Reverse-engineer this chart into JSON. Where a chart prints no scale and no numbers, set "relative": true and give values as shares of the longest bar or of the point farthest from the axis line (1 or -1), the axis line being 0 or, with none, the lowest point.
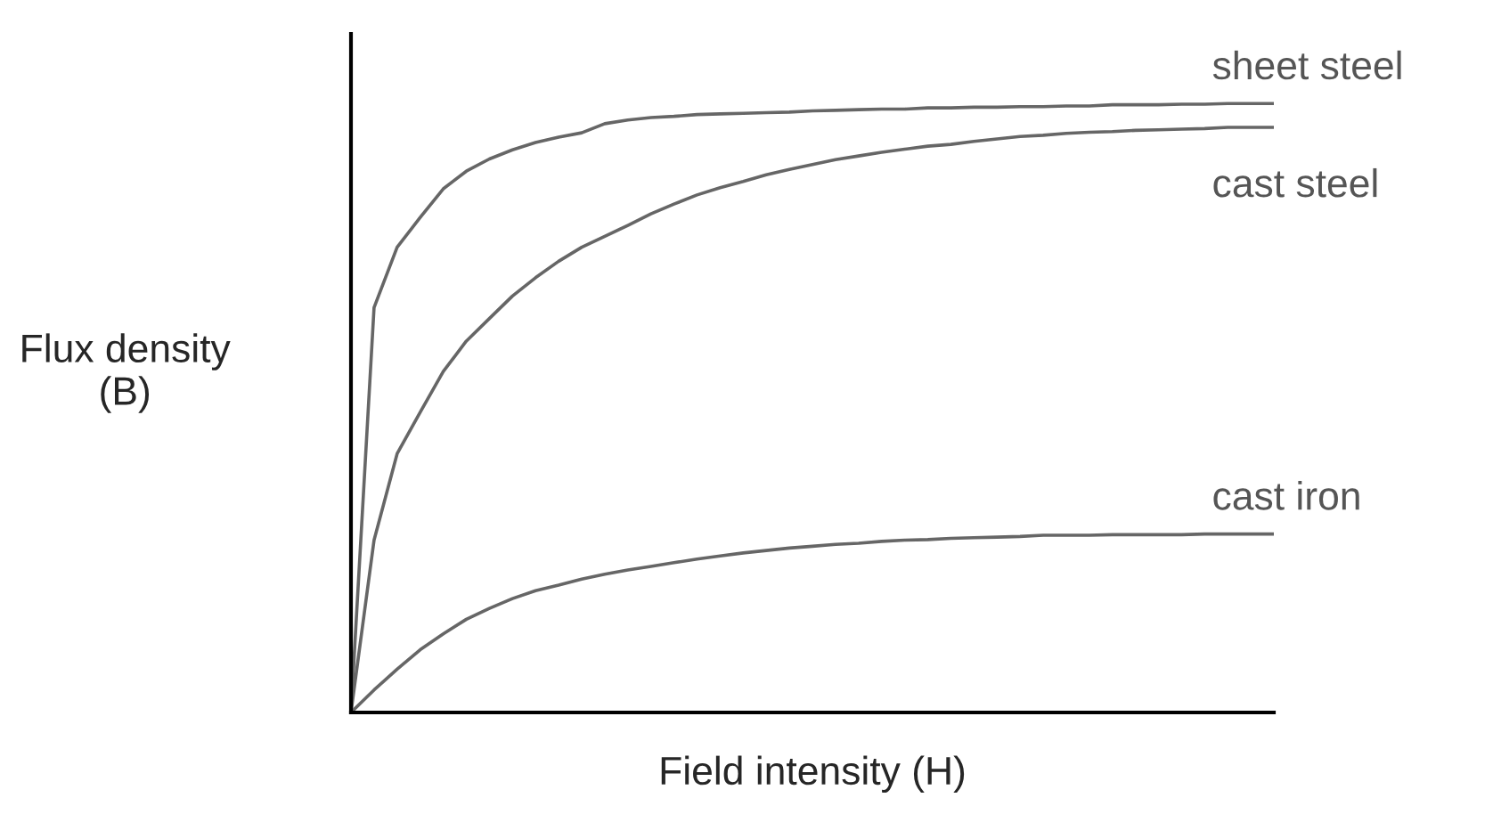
{
  "chart_data": {
    "type": "line",
    "relative": true,
    "xlabel": "Field intensity (H)",
    "ylabel": "Flux density\n(B)",
    "categories": [
      null,
      null,
      null,
      null,
      null,
      null,
      null,
      null,
      null,
      null,
      null,
      null,
      null,
      null,
      null,
      null,
      null,
      null,
      null,
      null,
      null,
      null,
      null,
      null,
      null,
      null,
      null,
      null,
      null,
      null,
      null,
      null,
      null,
      null,
      null,
      null,
      null,
      null,
      null,
      null,
      null
    ],
    "series": [
      {
        "name": "sheet steel",
        "color": "#666666",
        "values": [
          0,
          0.665,
          0.764,
          0.813,
          0.86,
          0.889,
          0.909,
          0.924,
          0.936,
          0.945,
          0.952,
          0.967,
          0.973,
          0.977,
          0.979,
          0.982,
          0.983,
          0.984,
          0.985,
          0.986,
          0.988,
          0.989,
          0.99,
          0.991,
          0.991,
          0.993,
          0.993,
          0.994,
          0.994,
          0.995,
          0.995,
          0.996,
          0.996,
          0.998,
          0.998,
          0.998,
          0.999,
          0.999,
          1,
          1,
          1
        ]
      },
      {
        "name": "cast steel",
        "color": "#666666",
        "values": [
          0,
          0.283,
          0.425,
          0.493,
          0.56,
          0.61,
          0.647,
          0.684,
          0.714,
          0.741,
          0.764,
          0.782,
          0.8,
          0.819,
          0.835,
          0.85,
          0.862,
          0.872,
          0.883,
          0.892,
          0.9,
          0.908,
          0.914,
          0.92,
          0.925,
          0.93,
          0.933,
          0.938,
          0.942,
          0.946,
          0.948,
          0.951,
          0.953,
          0.954,
          0.956,
          0.957,
          0.958,
          0.959,
          0.961,
          0.961,
          0.961
        ]
      },
      {
        "name": "cast iron",
        "color": "#666666",
        "values": [
          0,
          0.037,
          0.071,
          0.103,
          0.129,
          0.153,
          0.171,
          0.187,
          0.2,
          0.209,
          0.219,
          0.227,
          0.234,
          0.24,
          0.246,
          0.252,
          0.257,
          0.262,
          0.266,
          0.27,
          0.273,
          0.276,
          0.278,
          0.281,
          0.283,
          0.284,
          0.286,
          0.287,
          0.288,
          0.289,
          0.291,
          0.291,
          0.291,
          0.292,
          0.292,
          0.292,
          0.292,
          0.293,
          0.293,
          0.293,
          0.293
        ]
      }
    ],
    "grid": false,
    "legend": false,
    "marker": "none",
    "line_style": "solid"
  }
}
